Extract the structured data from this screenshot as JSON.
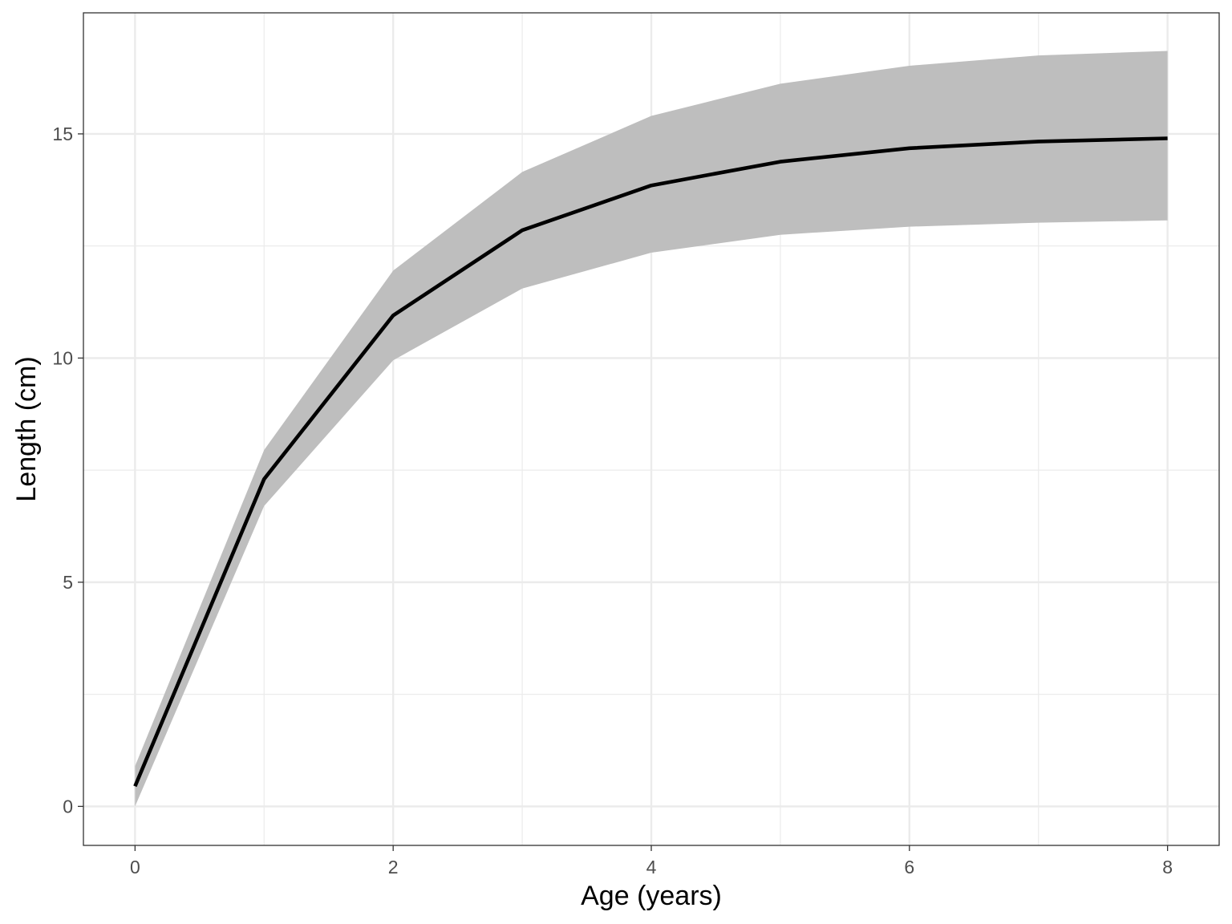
{
  "chart_data": {
    "type": "line",
    "title": "",
    "xlabel": "Age (years)",
    "ylabel": "Length (cm)",
    "x": [
      0,
      1,
      2,
      3,
      4,
      5,
      6,
      7,
      8
    ],
    "series": [
      {
        "values": [
          0.45,
          7.3,
          10.95,
          12.85,
          13.85,
          14.38,
          14.68,
          14.83,
          14.9
        ],
        "band_lower": [
          0.0,
          6.7,
          9.95,
          11.55,
          12.35,
          12.75,
          12.93,
          13.02,
          13.07
        ],
        "band_upper": [
          0.9,
          7.95,
          11.95,
          14.15,
          15.4,
          16.12,
          16.52,
          16.75,
          16.85
        ],
        "line_color": "#000000",
        "band_color": "#bebebe"
      }
    ],
    "xlim": [
      -0.4,
      8.4
    ],
    "ylim": [
      -0.87,
      17.7
    ],
    "x_ticks": [
      0,
      2,
      4,
      6,
      8
    ],
    "x_tick_labels": [
      "0",
      "2",
      "4",
      "6",
      "8"
    ],
    "x_minor_ticks": [
      1,
      3,
      5,
      7
    ],
    "y_ticks": [
      0,
      5,
      10,
      15
    ],
    "y_tick_labels": [
      "0",
      "5",
      "10",
      "15"
    ],
    "y_minor_ticks": [
      2.5,
      7.5,
      12.5
    ],
    "grid": true,
    "legend": "none",
    "theme": "black-and-white"
  }
}
